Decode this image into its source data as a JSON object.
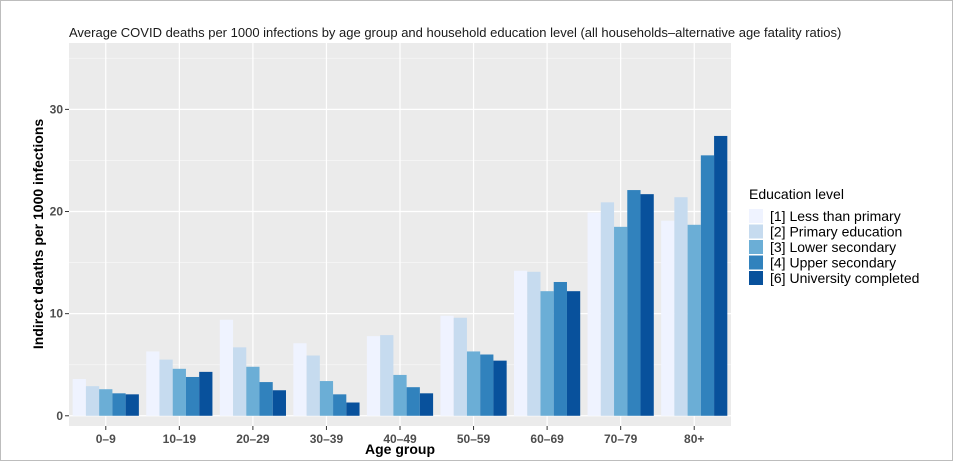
{
  "chart_data": {
    "type": "bar",
    "title": "Average COVID deaths per 1000 infections by age group and household education level (all households–alternative age fatality ratios)",
    "xlabel": "Age group",
    "ylabel": "Indirect deaths per 1000 infections",
    "categories": [
      "0–9",
      "10–19",
      "20–29",
      "30–39",
      "40–49",
      "50–59",
      "60–69",
      "70–79",
      "80+"
    ],
    "ylim": [
      -1,
      36.5
    ],
    "yticks": [
      0,
      10,
      20,
      30
    ],
    "ytick_labels": [
      "0",
      "10",
      "20",
      "30"
    ],
    "grid": true,
    "legend": {
      "title": "Education level",
      "position": "right"
    },
    "series": [
      {
        "name": "[1] Less than primary",
        "color": "#eff3ff",
        "values": [
          3.6,
          6.3,
          9.4,
          7.1,
          7.8,
          9.8,
          14.2,
          19.9,
          19.1
        ]
      },
      {
        "name": "[2] Primary education",
        "color": "#c6dbef",
        "values": [
          2.9,
          5.5,
          6.7,
          5.9,
          7.9,
          9.6,
          14.1,
          20.9,
          21.4
        ]
      },
      {
        "name": "[3] Lower secondary",
        "color": "#6baed6",
        "values": [
          2.6,
          4.6,
          4.8,
          3.4,
          4.0,
          6.3,
          12.2,
          18.5,
          18.7
        ]
      },
      {
        "name": "[4] Upper secondary",
        "color": "#3182bd",
        "values": [
          2.2,
          3.8,
          3.3,
          2.1,
          2.8,
          6.0,
          13.1,
          22.1,
          25.5
        ]
      },
      {
        "name": "[6] University completed",
        "color": "#08519c",
        "values": [
          2.1,
          4.3,
          2.5,
          1.3,
          2.2,
          5.4,
          12.2,
          21.7,
          27.4
        ]
      }
    ]
  }
}
